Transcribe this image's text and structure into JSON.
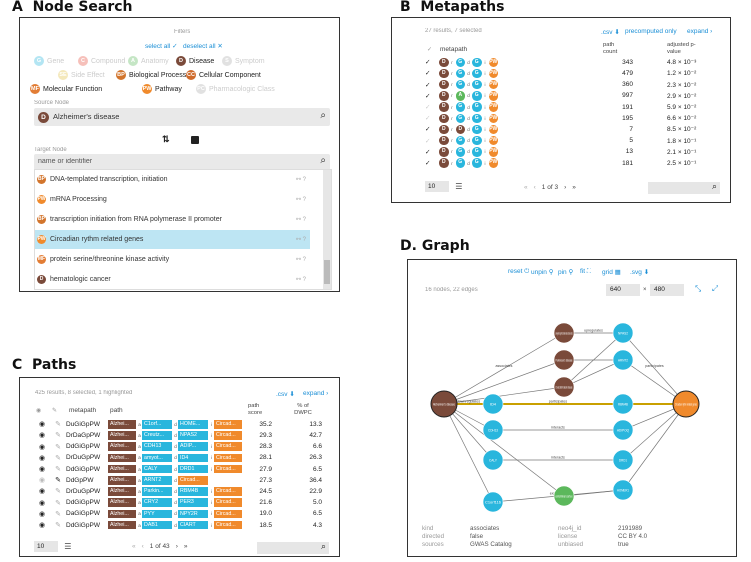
{
  "colors": {
    "disease": "#7a4a3a",
    "gene": "#29b6dd",
    "pathway": "#f08a2c",
    "bp": "#d2752d",
    "anatomy": "#5cb85c",
    "molecular": "#e27d35",
    "cellular": "#cf6a2b",
    "accent": "#1b8fd6",
    "highlight": "#c9a000"
  },
  "panels": {
    "a": "A",
    "a_title": "Node Search",
    "b": "B",
    "b_title": "Metapaths",
    "c": "C",
    "c_title": "Paths",
    "d": "D.",
    "d_title": "Graph"
  },
  "node_search": {
    "filters_label": "Filters",
    "select_all": "select all ✓",
    "deselect_all": "deselect all ✕",
    "filters": [
      {
        "code": "G",
        "label": "Gene",
        "on": false,
        "color": "#29b6dd"
      },
      {
        "code": "C",
        "label": "Compound",
        "on": false,
        "color": "#e74c3c"
      },
      {
        "code": "A",
        "label": "Anatomy",
        "on": false,
        "color": "#5cb85c"
      },
      {
        "code": "D",
        "label": "Disease",
        "on": true,
        "color": "#7a4a3a"
      },
      {
        "code": "S",
        "label": "Symptom",
        "on": false,
        "color": "#aaa"
      },
      {
        "code": "SE",
        "label": "Side Effect",
        "on": false,
        "color": "#e0c040"
      },
      {
        "code": "BP",
        "label": "Biological Process",
        "on": true,
        "color": "#d2752d"
      },
      {
        "code": "CC",
        "label": "Cellular Component",
        "on": true,
        "color": "#cf6a2b"
      },
      {
        "code": "MF",
        "label": "Molecular Function",
        "on": true,
        "color": "#e27d35"
      },
      {
        "code": "PW",
        "label": "Pathway",
        "on": true,
        "color": "#f08a2c"
      },
      {
        "code": "PC",
        "label": "Pharmacologic Class",
        "on": false,
        "color": "#aaa"
      }
    ],
    "source_label": "Source Node",
    "source_code": "D",
    "source_value": "Alzheimer's disease",
    "target_label": "Target Node",
    "target_placeholder": "name or identifier",
    "results": [
      {
        "code": "BP",
        "color": "#d2752d",
        "label": "DNA-templated transcription, initiation"
      },
      {
        "code": "PW",
        "color": "#f08a2c",
        "label": "mRNA Processing"
      },
      {
        "code": "BP",
        "color": "#d2752d",
        "label": "transcription initiation from RNA polymerase II promoter"
      },
      {
        "code": "PW",
        "color": "#f08a2c",
        "label": "Circadian rythm related genes"
      },
      {
        "code": "MF",
        "color": "#e27d35",
        "label": "protein serine/threonine kinase activity"
      },
      {
        "code": "D",
        "color": "#7a4a3a",
        "label": "hematologic cancer"
      }
    ]
  },
  "metapaths": {
    "summary": "27 results, 7 selected",
    "csv": ".csv ⬇",
    "precomputed": "precomputed only",
    "expand": "expand ›",
    "col_metapath": "metapath",
    "col_count": "path count",
    "col_adj": "adjusted p-value",
    "rows": [
      {
        "chk": "✓",
        "mp": [
          "D",
          "G",
          "G",
          "PW"
        ],
        "count": "343",
        "p": "4.8 × 10⁻³"
      },
      {
        "chk": "✓",
        "mp": [
          "D",
          "G",
          "G",
          "PW"
        ],
        "count": "479",
        "p": "1.2 × 10⁻²"
      },
      {
        "chk": "✓",
        "mp": [
          "D",
          "G",
          "G",
          "PW"
        ],
        "count": "360",
        "p": "2.3 × 10⁻²"
      },
      {
        "chk": "✓",
        "mp": [
          "D",
          "A",
          "G",
          "PW"
        ],
        "count": "997",
        "p": "2.9 × 10⁻²"
      },
      {
        "chk": "✓",
        "mp": [
          "D",
          "G",
          "G",
          "PW"
        ],
        "count": "191",
        "p": "5.9 × 10⁻²"
      },
      {
        "chk": "✓",
        "mp": [
          "D",
          "G",
          "G",
          "PW"
        ],
        "count": "195",
        "p": "6.6 × 10⁻²"
      },
      {
        "chk": "✓",
        "mp": [
          "D",
          "D",
          "G",
          "PW"
        ],
        "count": "7",
        "p": "8.5 × 10⁻²"
      },
      {
        "chk": "✓",
        "mp": [
          "D",
          "G",
          "G",
          "PW"
        ],
        "count": "5",
        "p": "1.8 × 10⁻¹"
      },
      {
        "chk": "✓",
        "mp": [
          "D",
          "G",
          "G",
          "PW"
        ],
        "count": "13",
        "p": "2.1 × 10⁻¹"
      },
      {
        "chk": "✓",
        "mp": [
          "D",
          "G",
          "G",
          "PW"
        ],
        "count": "181",
        "p": "2.5 × 10⁻¹"
      }
    ],
    "page_size": "10",
    "page_info": "1 of 3"
  },
  "paths": {
    "summary": "425 results, 8 selected, 1 highlighted",
    "csv": ".csv ⬇",
    "expand": "expand ›",
    "col_metapath": "metapath",
    "col_path": "path",
    "col_score": "path score",
    "col_dwpc": "% of DWPC",
    "rows": [
      {
        "mp": "DuGiGpPW",
        "n": [
          "Alzhei...",
          "C1orf...",
          "HOME...",
          "Circad..."
        ],
        "score": "35.2",
        "dwpc": "13.3"
      },
      {
        "mp": "DrDaGpPW",
        "n": [
          "Alzhei...",
          "Creutz...",
          "NPAS2",
          "Circad..."
        ],
        "score": "29.3",
        "dwpc": "42.7"
      },
      {
        "mp": "DdGiGpPW",
        "n": [
          "Alzhei...",
          "CDH13",
          "ADIP...",
          "Circad..."
        ],
        "score": "28.3",
        "dwpc": "6.6"
      },
      {
        "mp": "DrDuGpPW",
        "n": [
          "Alzhei...",
          "amyot...",
          "ID4",
          "Circad..."
        ],
        "score": "28.1",
        "dwpc": "26.3"
      },
      {
        "mp": "DdGiGpPW",
        "n": [
          "Alzhei...",
          "CALY",
          "DRD1",
          "Circad..."
        ],
        "score": "27.9",
        "dwpc": "6.5"
      },
      {
        "mp": "DdGpPW",
        "n": [
          "Alzhei...",
          "ARNT2",
          "Circad..."
        ],
        "score": "27.3",
        "dwpc": "36.4"
      },
      {
        "mp": "DrDuGpPW",
        "n": [
          "Alzhei...",
          "Parkin...",
          "RBM4B",
          "Circad..."
        ],
        "score": "24.5",
        "dwpc": "22.9"
      },
      {
        "mp": "DdGiGpPW",
        "n": [
          "Alzhei...",
          "CRY2",
          "PER3",
          "Circad..."
        ],
        "score": "21.6",
        "dwpc": "5.0"
      },
      {
        "mp": "DaGiGpPW",
        "n": [
          "Alzhei...",
          "PYY",
          "NPY2R",
          "Circad..."
        ],
        "score": "19.0",
        "dwpc": "6.5"
      },
      {
        "mp": "DdGiGpPW",
        "n": [
          "Alzhei...",
          "DAB1",
          "CIART",
          "Circad..."
        ],
        "score": "18.5",
        "dwpc": "4.3"
      }
    ],
    "page_size": "10",
    "page_info": "1 of 43"
  },
  "graph": {
    "toolbar": {
      "reset": "reset ⏻",
      "unpin": "unpin ⚲",
      "pin": "pin ⚲",
      "fit": "fit ⛶",
      "grid": "grid ▦",
      "svg": ".svg ⬇"
    },
    "summary": "16 nodes, 22 edges",
    "width": "640",
    "x": "×",
    "height": "480",
    "nodes": [
      {
        "id": "ad",
        "label": "Alzheimer's disease",
        "type": "disease"
      },
      {
        "id": "cr",
        "label": "Circadian rythm related genes",
        "type": "pathway"
      },
      {
        "id": "d1",
        "label": "amyotrophic lateral sclerosis",
        "type": "disease"
      },
      {
        "id": "d2",
        "label": "Parkinson's disease",
        "type": "disease"
      },
      {
        "id": "d3",
        "label": "Creutzfeldt-Jakob disease",
        "type": "disease"
      },
      {
        "id": "a1",
        "label": "entorhinal cortex",
        "type": "anatomy"
      },
      {
        "id": "g1",
        "label": "ID4",
        "type": "gene"
      },
      {
        "id": "g2",
        "label": "RBM4B",
        "type": "gene"
      },
      {
        "id": "g3",
        "label": "NPAS2",
        "type": "gene"
      },
      {
        "id": "g4",
        "label": "ARNT2",
        "type": "gene"
      },
      {
        "id": "g5",
        "label": "CDH13",
        "type": "gene"
      },
      {
        "id": "g6",
        "label": "CALY",
        "type": "gene"
      },
      {
        "id": "g7",
        "label": "ADIPOQ",
        "type": "gene"
      },
      {
        "id": "g8",
        "label": "DRD1",
        "type": "gene"
      },
      {
        "id": "g9",
        "label": "HOMER1",
        "type": "gene"
      },
      {
        "id": "g10",
        "label": "C1orf116",
        "type": "gene"
      }
    ],
    "edge_labels": [
      "associates",
      "upregulates",
      "resembles",
      "downregulates",
      "participates",
      "interacts",
      "expresses",
      "localizes"
    ],
    "detail": {
      "kind_k": "kind",
      "kind_v": "associates",
      "dir_k": "directed",
      "dir_v": "false",
      "src_k": "sources",
      "src_v": "GWAS Catalog",
      "id_k": "neo4j_id",
      "id_v": "2191989",
      "lic_k": "license",
      "lic_v": "CC BY 4.0",
      "unb_k": "unbiased",
      "unb_v": "true"
    }
  }
}
